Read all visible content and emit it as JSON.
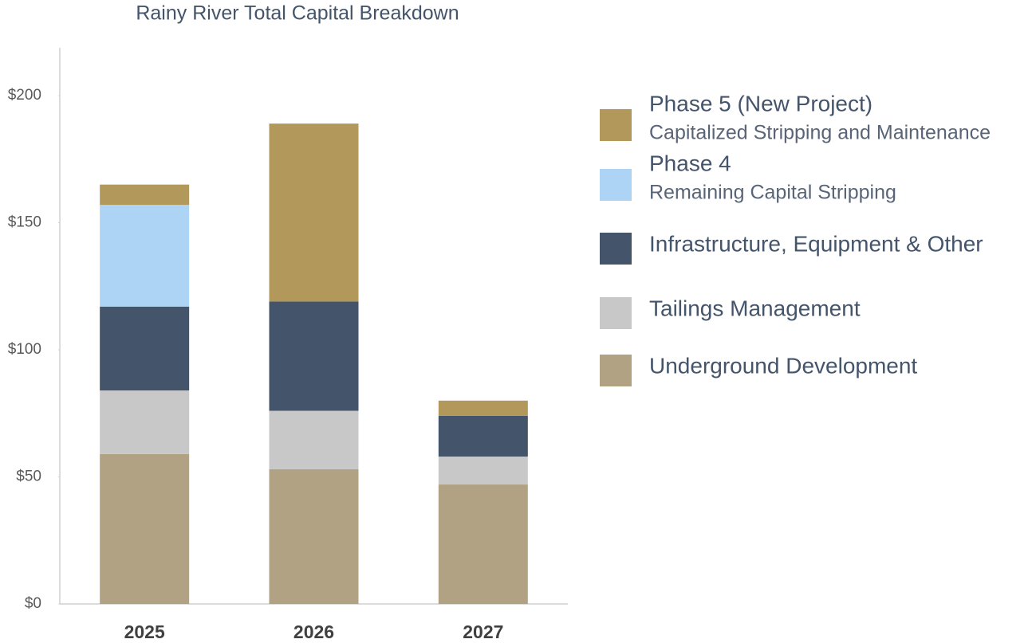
{
  "chart_data": {
    "type": "stacked_bar",
    "title": "Rainy River Total Capital Breakdown",
    "categories": [
      "2025",
      "2026",
      "2027"
    ],
    "series": [
      {
        "name": "Underground Development",
        "color": "#b0a282",
        "values": [
          59,
          53,
          47
        ]
      },
      {
        "name": "Tailings Management",
        "color": "#c8c8c8",
        "values": [
          25,
          23,
          11
        ]
      },
      {
        "name": "Infrastructure, Equipment & Other",
        "color": "#44546a",
        "values": [
          33,
          43,
          16
        ]
      },
      {
        "name": "Phase 4",
        "description": "Remaining Capital Stripping",
        "color": "#aed4f5",
        "values": [
          40,
          0,
          0
        ]
      },
      {
        "name": "Phase 5 (New Project)",
        "description": "Capitalized Stripping and Maintenance",
        "color": "#b3985c",
        "values": [
          8,
          70,
          6
        ]
      }
    ],
    "ylim": [
      0,
      200
    ],
    "yticks": [
      {
        "value": 0,
        "label": "$0"
      },
      {
        "value": 50,
        "label": "$50"
      },
      {
        "value": 100,
        "label": "$100"
      },
      {
        "value": 150,
        "label": "$150"
      },
      {
        "value": 200,
        "label": "$200"
      }
    ],
    "grid": false,
    "legend": "right"
  }
}
